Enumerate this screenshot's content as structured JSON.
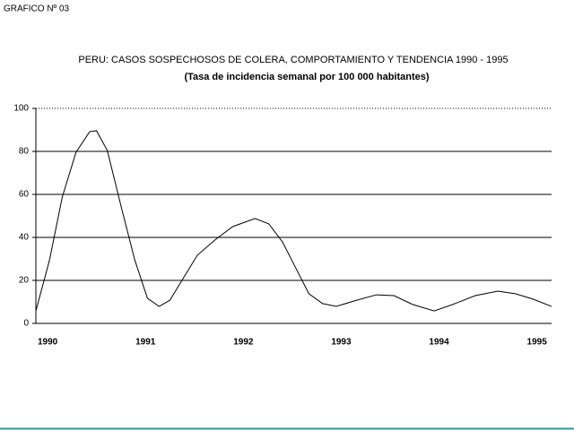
{
  "header": "GRAFICO Nº 03",
  "chart_data": {
    "type": "line",
    "title": "PERU: CASOS SOSPECHOSOS DE COLERA, COMPORTAMIENTO Y TENDENCIA 1990 - 1995",
    "subtitle": "(Tasa de incidencia semanal por 100 000 habitantes)",
    "x": [
      1990,
      1990.14,
      1990.27,
      1990.41,
      1990.55,
      1990.62,
      1990.73,
      1990.87,
      1991.01,
      1991.14,
      1991.26,
      1991.37,
      1991.51,
      1991.65,
      1991.83,
      1992.01,
      1992.24,
      1992.38,
      1992.52,
      1992.66,
      1992.79,
      1992.93,
      1993.07,
      1993.25,
      1993.48,
      1993.66,
      1993.85,
      1994.07,
      1994.26,
      1994.49,
      1994.72,
      1994.9,
      1995.08,
      1995.27
    ],
    "values": [
      5.8,
      29.6,
      58.8,
      79.6,
      89.2,
      89.6,
      80.4,
      54.6,
      29.6,
      11.7,
      7.9,
      10.8,
      21.3,
      31.7,
      38.8,
      45,
      48.8,
      46.3,
      37.9,
      25.4,
      13.8,
      9.2,
      7.9,
      10.4,
      13.3,
      12.9,
      8.8,
      5.8,
      8.8,
      12.9,
      15,
      13.8,
      11.3,
      7.9
    ],
    "color": "#000000",
    "xlim": [
      1990,
      1995.27
    ],
    "xticks": [
      1990,
      1991,
      1992,
      1993,
      1994,
      1995
    ],
    "ylim": [
      0,
      100
    ],
    "yticks": [
      0,
      20,
      40,
      60,
      80,
      100
    ],
    "grid": true
  }
}
